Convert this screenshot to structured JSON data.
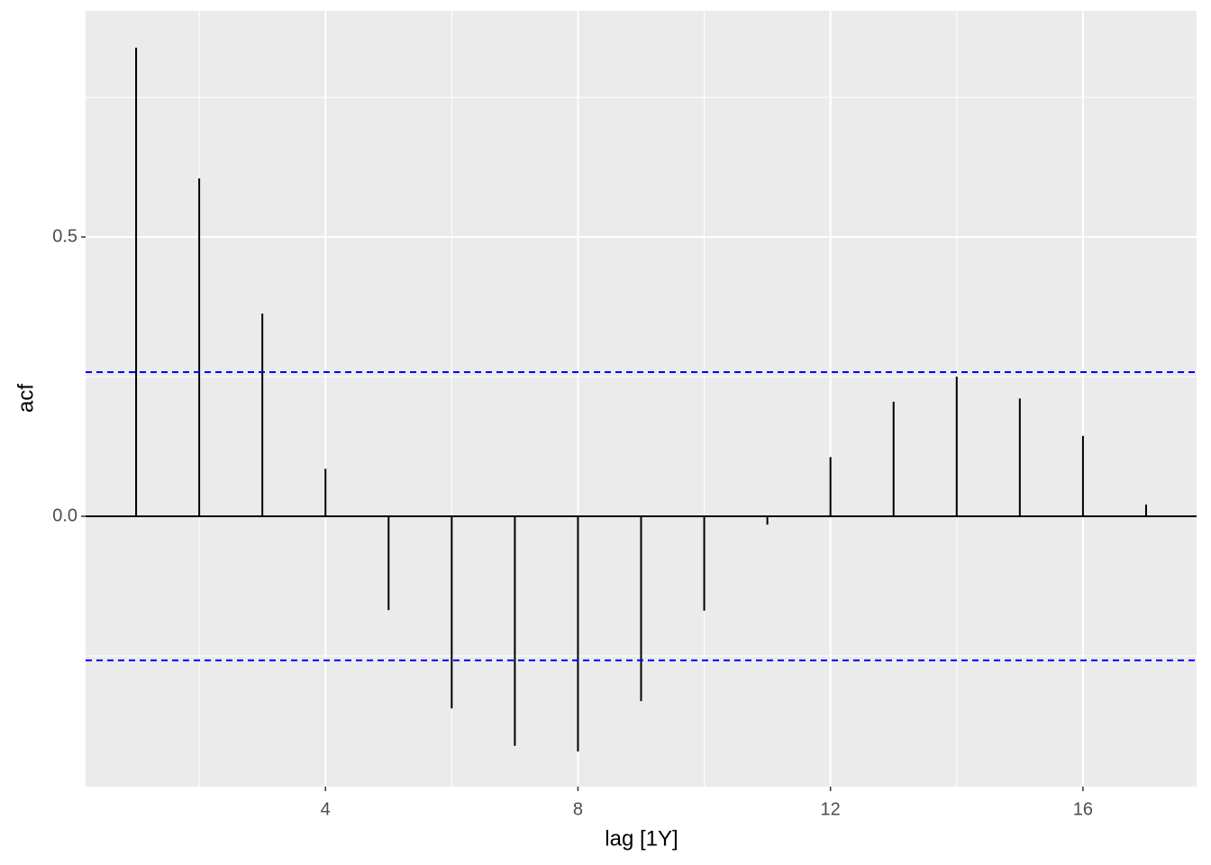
{
  "chart_data": {
    "type": "acf",
    "x_label": "lag [1Y]",
    "y_label": "acf",
    "x": [
      1,
      2,
      3,
      4,
      5,
      6,
      7,
      8,
      9,
      10,
      11,
      12,
      13,
      14,
      15,
      16,
      17
    ],
    "values": [
      0.839,
      0.605,
      0.363,
      0.085,
      -0.168,
      -0.344,
      -0.411,
      -0.421,
      -0.331,
      -0.169,
      -0.015,
      0.106,
      0.205,
      0.25,
      0.211,
      0.144,
      0.021
    ],
    "color": "#000000",
    "ci_lines": [
      0.258,
      -0.258
    ],
    "ci_color": "#0000ff",
    "xlim": [
      0.2,
      17.8
    ],
    "ylim": [
      -0.484,
      0.905
    ],
    "xticks": [
      4,
      8,
      12,
      16
    ],
    "yticks": [
      {
        "value": 0,
        "label": "0.0"
      },
      0.5
    ],
    "x_minor_grid": [
      2,
      6,
      10,
      14
    ],
    "y_minor_grid": [
      -0.25,
      0.25,
      0.75
    ],
    "grid": true
  }
}
